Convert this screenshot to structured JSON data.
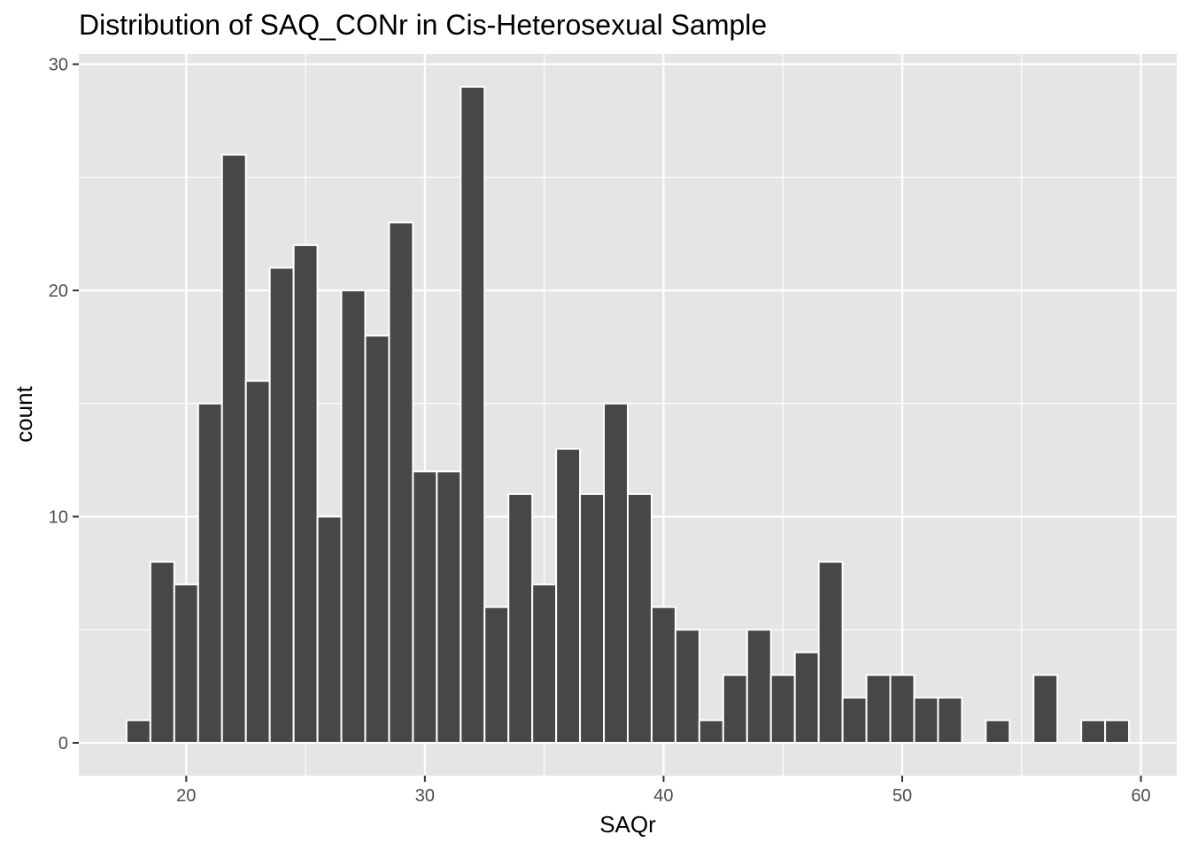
{
  "chart_data": {
    "type": "bar",
    "title": "Distribution of SAQ_CONr in Cis-Heterosexual Sample",
    "xlabel": "SAQr",
    "ylabel": "count",
    "x": [
      18,
      19,
      20,
      21,
      22,
      23,
      24,
      25,
      26,
      27,
      28,
      29,
      30,
      31,
      32,
      33,
      34,
      35,
      36,
      37,
      38,
      39,
      40,
      41,
      42,
      43,
      44,
      45,
      46,
      47,
      48,
      49,
      50,
      51,
      52,
      54,
      56,
      58,
      59
    ],
    "values": [
      1,
      8,
      7,
      15,
      26,
      16,
      21,
      22,
      10,
      20,
      18,
      23,
      12,
      12,
      29,
      6,
      11,
      7,
      13,
      11,
      15,
      11,
      6,
      5,
      1,
      3,
      5,
      3,
      4,
      8,
      2,
      3,
      3,
      2,
      2,
      1,
      3,
      1,
      1
    ],
    "xlim": [
      15.5,
      61.5
    ],
    "ylim": [
      -1.45,
      30.45
    ],
    "x_ticks": [
      20,
      30,
      40,
      50,
      60
    ],
    "x_tick_labels": [
      "20",
      "30",
      "40",
      "50",
      "60"
    ],
    "y_ticks": [
      0,
      10,
      20,
      30
    ],
    "y_tick_labels": [
      "0",
      "10",
      "20",
      "30"
    ],
    "grid": true,
    "bar_color": "#474747",
    "panel_color": "#e5e5e5",
    "grid_color": "#ffffff"
  }
}
